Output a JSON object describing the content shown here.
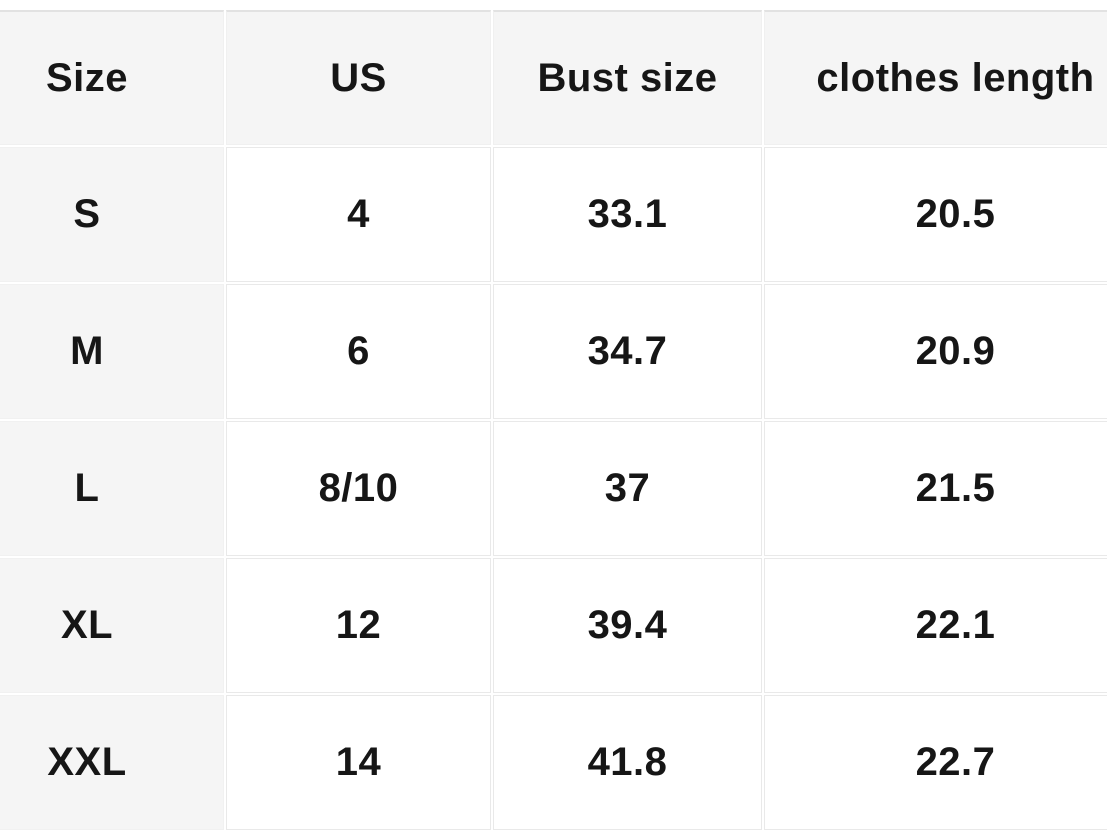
{
  "chart_data": {
    "type": "table",
    "columns": [
      "Size",
      "US",
      "Bust size",
      "clothes length"
    ],
    "rows": [
      [
        "S",
        "4",
        "33.1",
        "20.5"
      ],
      [
        "M",
        "6",
        "34.7",
        "20.9"
      ],
      [
        "L",
        "8/10",
        "37",
        "21.5"
      ],
      [
        "XL",
        "12",
        "39.4",
        "22.1"
      ],
      [
        "XXL",
        "14",
        "41.8",
        "22.7"
      ]
    ],
    "layout_hints": {
      "header_row_shaded": true,
      "first_column_shaded": true,
      "cropped_left": true,
      "cropped_right": true
    }
  },
  "colors": {
    "page_bg": "#ffffff",
    "header_bg": "#f5f5f5",
    "row_label_bg": "#f5f5f5",
    "cell_bg": "#ffffff",
    "grid_line": "#e9e9e9",
    "top_border": "#e2e2e2",
    "text": "#161616"
  }
}
